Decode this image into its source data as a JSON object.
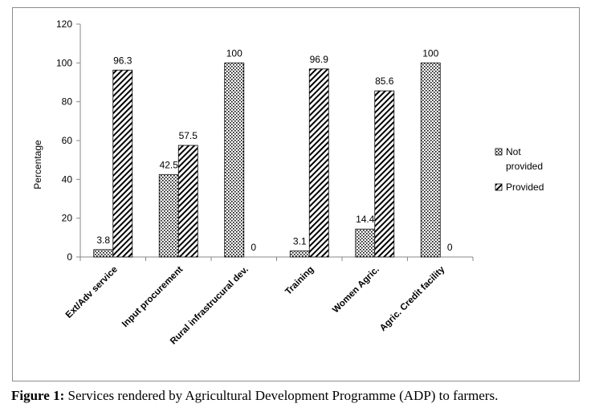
{
  "chart_data": {
    "type": "bar",
    "categories": [
      "Ext/Adv service",
      "Input procurement",
      "Rural infrastrucural dev.",
      "Training",
      "Women Agric.",
      "Agric. Credit facility"
    ],
    "series": [
      {
        "name": "Not provided",
        "legend_lines": [
          "Not",
          "provided"
        ],
        "values": [
          3.8,
          42.5,
          100,
          3.1,
          14.4,
          100
        ],
        "labels": [
          "3.8",
          "42.5",
          "100",
          "3.1",
          "14.4",
          "100"
        ],
        "pattern": "dots"
      },
      {
        "name": "Provided",
        "legend_lines": [
          "Provided"
        ],
        "values": [
          96.3,
          57.5,
          0,
          96.9,
          85.6,
          0
        ],
        "labels": [
          "96.3",
          "57.5",
          "0",
          "96.9",
          "85.6",
          "0"
        ],
        "pattern": "diagonal"
      }
    ],
    "ylabel": "Percentage",
    "xlabel": "",
    "ylim": [
      0,
      120
    ],
    "yticks": [
      0,
      20,
      40,
      60,
      80,
      100,
      120
    ],
    "grid": false,
    "legend": "right"
  },
  "caption": {
    "label": "Figure 1:",
    "text": " Services rendered by Agricultural Development Programme (ADP) to farmers."
  }
}
